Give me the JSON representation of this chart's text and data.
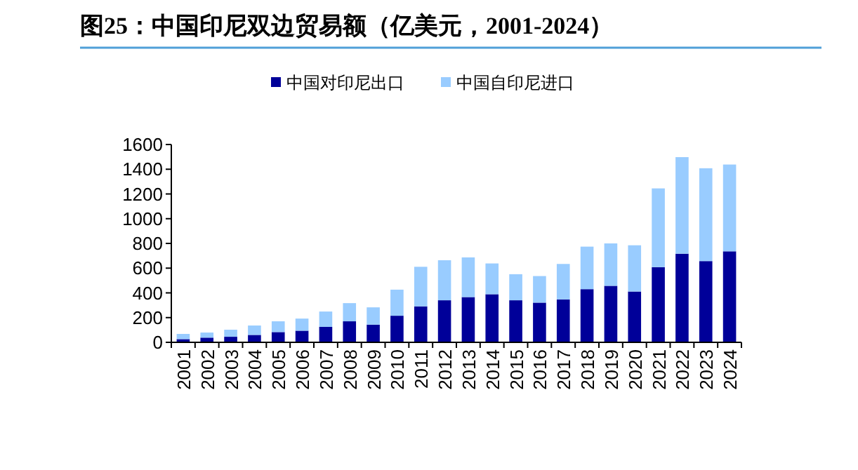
{
  "chart_data": {
    "type": "bar",
    "title": "图25：中国印尼双边贸易额（亿美元，2001-2024）",
    "stacked": true,
    "legend": "top",
    "categories": [
      "2001",
      "2002",
      "2003",
      "2004",
      "2005",
      "2006",
      "2007",
      "2008",
      "2009",
      "2010",
      "2011",
      "2012",
      "2013",
      "2014",
      "2015",
      "2016",
      "2017",
      "2018",
      "2019",
      "2020",
      "2021",
      "2022",
      "2023",
      "2024"
    ],
    "series": [
      {
        "name": "中国对印尼出口",
        "color": "#000099",
        "values": [
          26,
          38,
          45,
          60,
          83,
          94,
          125,
          170,
          143,
          215,
          291,
          340,
          366,
          389,
          340,
          321,
          347,
          430,
          457,
          411,
          608,
          717,
          657,
          736
        ]
      },
      {
        "name": "中国自印尼进口",
        "color": "#99ccff",
        "values": [
          42,
          41,
          57,
          76,
          87,
          98,
          124,
          147,
          140,
          211,
          320,
          324,
          321,
          249,
          211,
          215,
          287,
          344,
          343,
          374,
          637,
          781,
          751,
          702
        ]
      }
    ],
    "ylim": [
      0,
      1600
    ],
    "yticks": [
      0,
      200,
      400,
      600,
      800,
      1000,
      1200,
      1400,
      1600
    ]
  }
}
